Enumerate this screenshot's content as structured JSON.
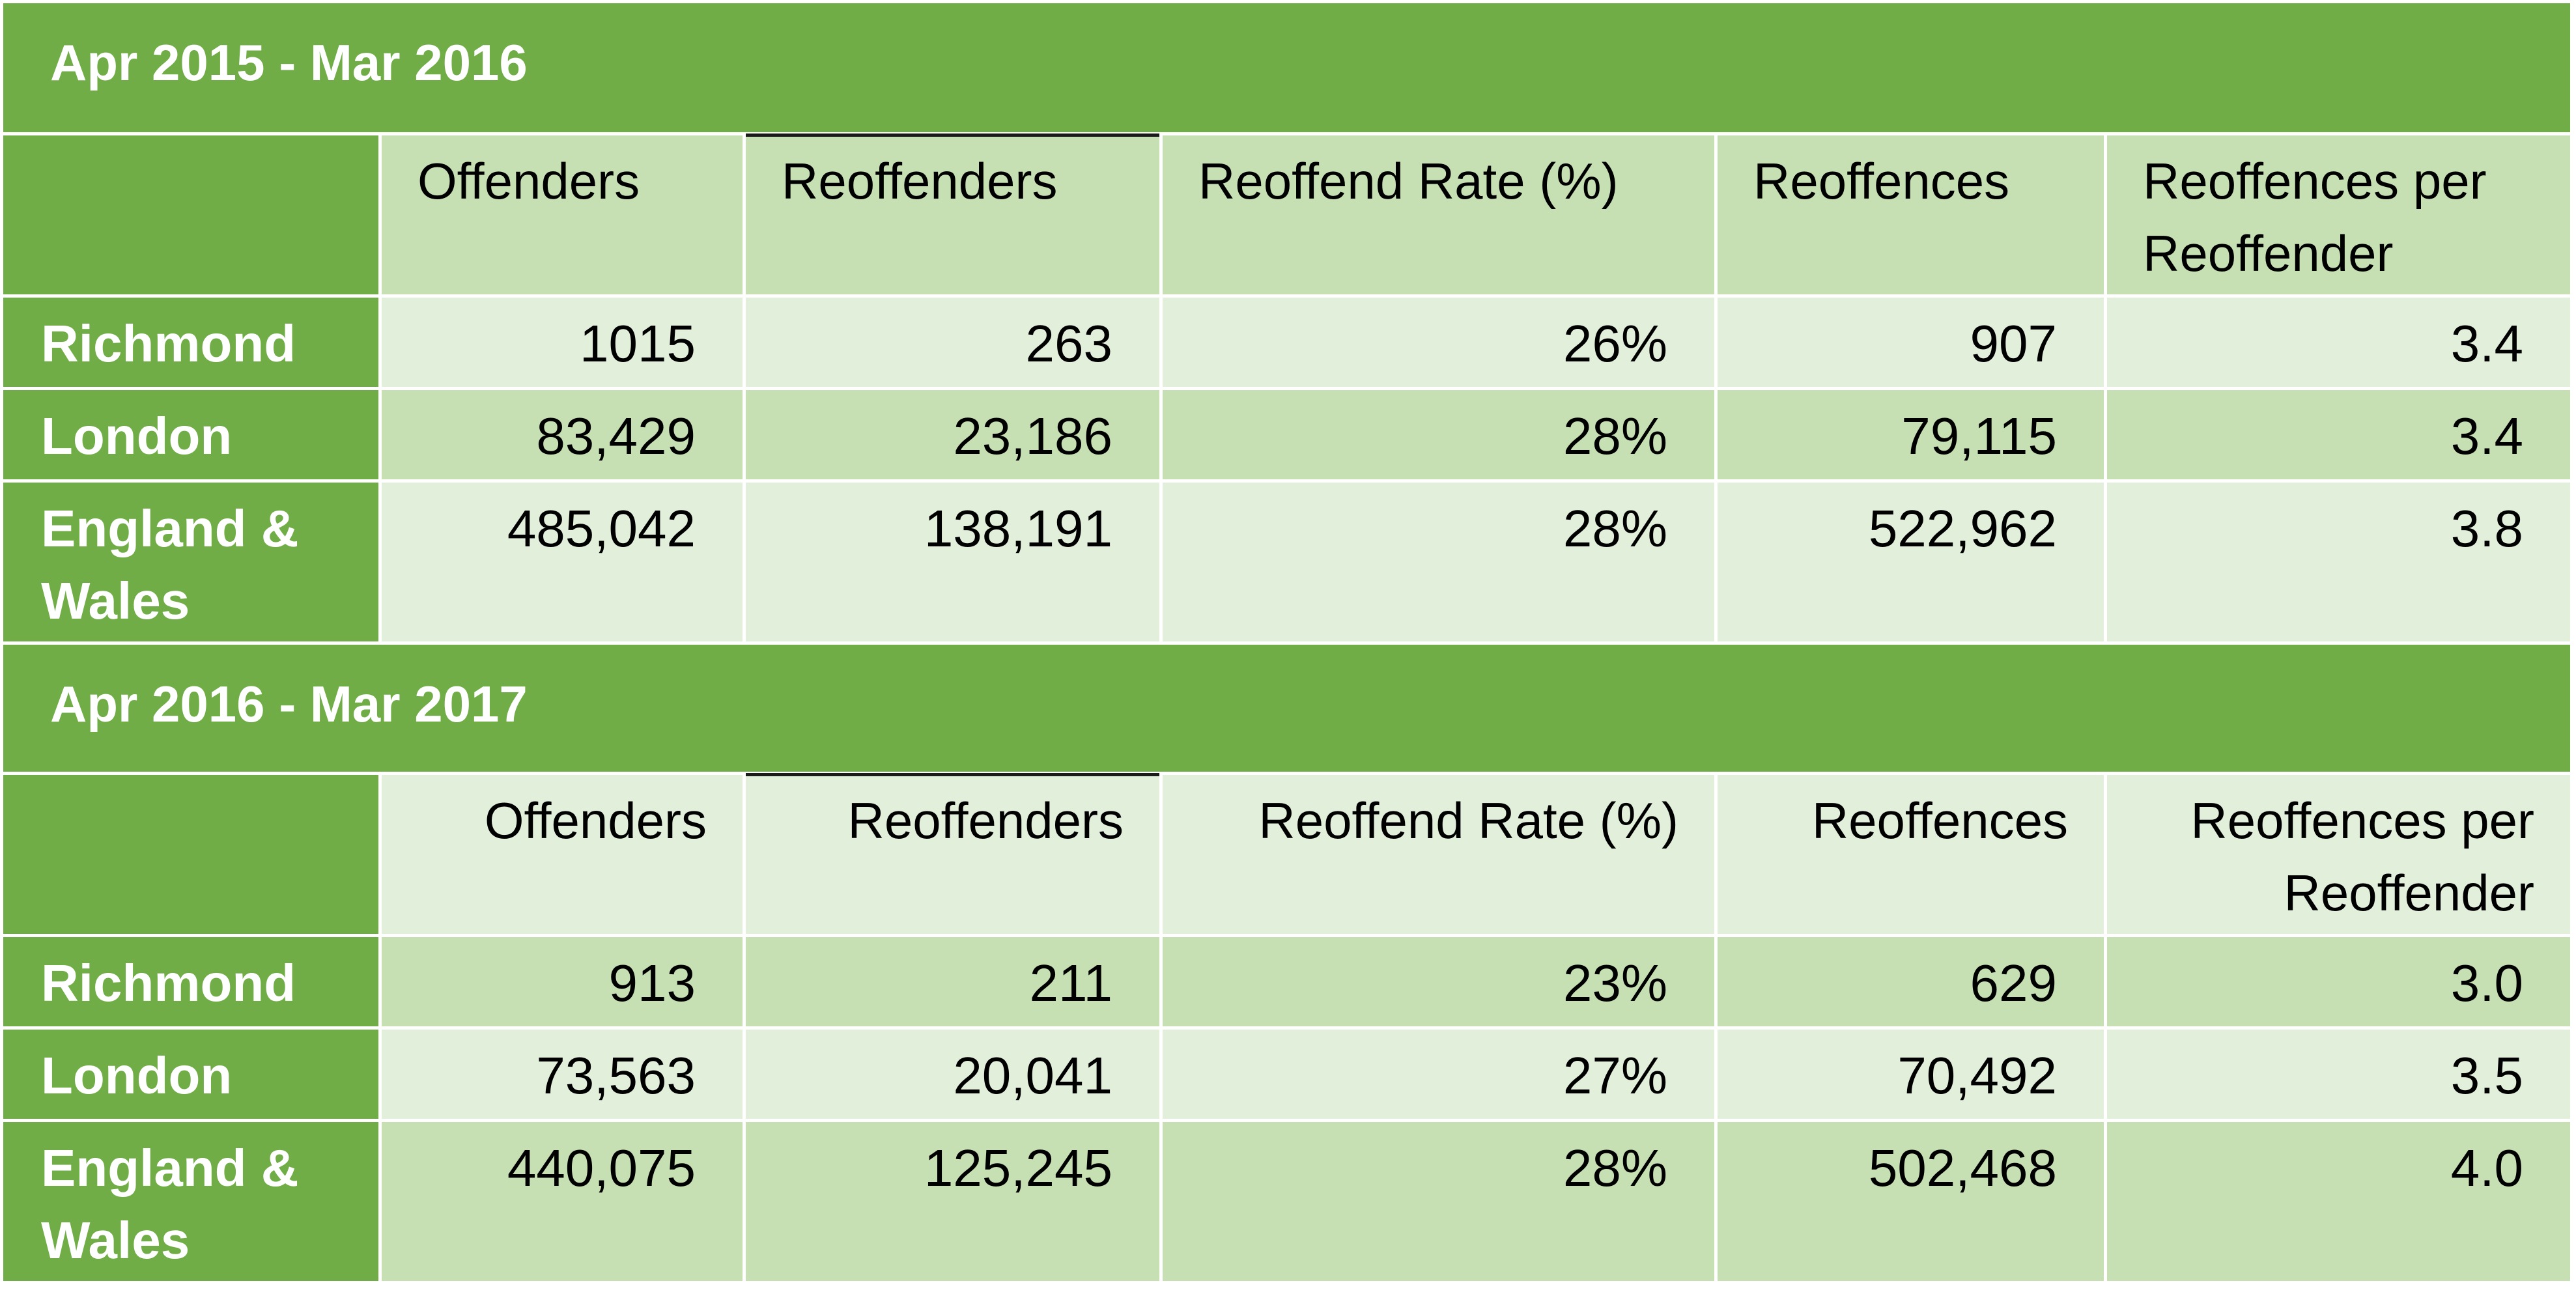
{
  "colors": {
    "accent_green": "#70AD47",
    "band_light": "#E2EFDA",
    "band_mid": "#C6E0B4"
  },
  "tables": [
    {
      "period": "Apr 2015 - Mar 2016",
      "columns": [
        "Offenders",
        "Reoffenders",
        "Reoffend Rate (%)",
        "Reoffences",
        "Reoffences per Reoffender"
      ],
      "rows": [
        {
          "area": "Richmond",
          "values": [
            "1015",
            "263",
            "26%",
            "907",
            "3.4"
          ]
        },
        {
          "area": "London",
          "values": [
            "83,429",
            "23,186",
            "28%",
            "79,115",
            "3.4"
          ]
        },
        {
          "area": "England & Wales",
          "values": [
            "485,042",
            "138,191",
            "28%",
            "522,962",
            "3.8"
          ]
        }
      ]
    },
    {
      "period": "Apr 2016 - Mar 2017",
      "columns": [
        "Offenders",
        "Reoffenders",
        "Reoffend Rate (%)",
        "Reoffences",
        "Reoffences per Reoffender"
      ],
      "rows": [
        {
          "area": "Richmond",
          "values": [
            "913",
            "211",
            "23%",
            "629",
            "3.0"
          ]
        },
        {
          "area": "London",
          "values": [
            "73,563",
            "20,041",
            "27%",
            "70,492",
            "3.5"
          ]
        },
        {
          "area": "England & Wales",
          "values": [
            "440,075",
            "125,245",
            "28%",
            "502,468",
            "4.0"
          ]
        }
      ]
    }
  ]
}
